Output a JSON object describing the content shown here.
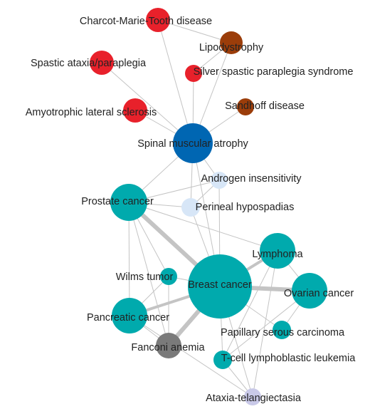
{
  "palette": {
    "red": "#e8212b",
    "brown": "#9b3d0a",
    "blue": "#0066b2",
    "teal": "#00aaad",
    "lightblue": "#d7e6f7",
    "gray": "#7a7a7a",
    "lavender": "#c9c9e8",
    "edge": "#c4c4c4"
  },
  "nodes": [
    {
      "id": "cmt",
      "label": "Charcot-Marie-Tooth disease",
      "color": "red"
    },
    {
      "id": "lipo",
      "label": "Lipodystrophy",
      "color": "brown"
    },
    {
      "id": "spastic",
      "label": "Spastic ataxia/paraplegia",
      "color": "red"
    },
    {
      "id": "silver",
      "label": "Silver spastic paraplegia syndrome",
      "color": "red"
    },
    {
      "id": "sandhoff",
      "label": "Sandhoff disease",
      "color": "brown"
    },
    {
      "id": "als",
      "label": "Amyotrophic lateral sclerosis",
      "color": "red"
    },
    {
      "id": "sma",
      "label": "Spinal muscular atrophy",
      "color": "blue"
    },
    {
      "id": "androgen",
      "label": "Androgen insensitivity",
      "color": "lightblue"
    },
    {
      "id": "prostate",
      "label": "Prostate cancer",
      "color": "teal"
    },
    {
      "id": "perineal",
      "label": "Perineal hypospadias",
      "color": "lightblue"
    },
    {
      "id": "lymphoma",
      "label": "Lymphoma",
      "color": "teal"
    },
    {
      "id": "wilms",
      "label": "Wilms tumor",
      "color": "teal"
    },
    {
      "id": "breast",
      "label": "Breast cancer",
      "color": "teal"
    },
    {
      "id": "ovarian",
      "label": "Ovarian cancer",
      "color": "teal"
    },
    {
      "id": "pancreatic",
      "label": "Pancreatic cancer",
      "color": "teal"
    },
    {
      "id": "papillary",
      "label": "Papillary serous carcinoma",
      "color": "teal"
    },
    {
      "id": "fanconi",
      "label": "Fanconi anemia",
      "color": "gray"
    },
    {
      "id": "tcell",
      "label": "T-cell lymphoblastic leukemia",
      "color": "teal"
    },
    {
      "id": "ataxia",
      "label": "Ataxia-telangiectasia",
      "color": "lavender"
    }
  ],
  "edges": [
    {
      "source": "cmt",
      "target": "lipo",
      "weight": 1
    },
    {
      "source": "cmt",
      "target": "sma",
      "weight": 1
    },
    {
      "source": "spastic",
      "target": "sma",
      "weight": 1
    },
    {
      "source": "silver",
      "target": "lipo",
      "weight": 1
    },
    {
      "source": "silver",
      "target": "sma",
      "weight": 1
    },
    {
      "source": "lipo",
      "target": "sma",
      "weight": 1
    },
    {
      "source": "sandhoff",
      "target": "sma",
      "weight": 1
    },
    {
      "source": "als",
      "target": "sma",
      "weight": 1
    },
    {
      "source": "sma",
      "target": "androgen",
      "weight": 1
    },
    {
      "source": "sma",
      "target": "prostate",
      "weight": 1
    },
    {
      "source": "sma",
      "target": "perineal",
      "weight": 1
    },
    {
      "source": "sma",
      "target": "breast",
      "weight": 1
    },
    {
      "source": "androgen",
      "target": "prostate",
      "weight": 1
    },
    {
      "source": "androgen",
      "target": "perineal",
      "weight": 1
    },
    {
      "source": "androgen",
      "target": "breast",
      "weight": 1
    },
    {
      "source": "perineal",
      "target": "prostate",
      "weight": 1
    },
    {
      "source": "perineal",
      "target": "breast",
      "weight": 1
    },
    {
      "source": "prostate",
      "target": "breast",
      "weight": 3
    },
    {
      "source": "prostate",
      "target": "pancreatic",
      "weight": 1
    },
    {
      "source": "prostate",
      "target": "wilms",
      "weight": 1
    },
    {
      "source": "prostate",
      "target": "lymphoma",
      "weight": 1
    },
    {
      "source": "prostate",
      "target": "fanconi",
      "weight": 1
    },
    {
      "source": "breast",
      "target": "lymphoma",
      "weight": 2
    },
    {
      "source": "breast",
      "target": "ovarian",
      "weight": 3
    },
    {
      "source": "breast",
      "target": "pancreatic",
      "weight": 2
    },
    {
      "source": "breast",
      "target": "fanconi",
      "weight": 3
    },
    {
      "source": "breast",
      "target": "wilms",
      "weight": 1
    },
    {
      "source": "breast",
      "target": "papillary",
      "weight": 1
    },
    {
      "source": "breast",
      "target": "tcell",
      "weight": 1
    },
    {
      "source": "breast",
      "target": "ataxia",
      "weight": 1
    },
    {
      "source": "lymphoma",
      "target": "ovarian",
      "weight": 1
    },
    {
      "source": "lymphoma",
      "target": "tcell",
      "weight": 1
    },
    {
      "source": "lymphoma",
      "target": "ataxia",
      "weight": 1
    },
    {
      "source": "ovarian",
      "target": "papillary",
      "weight": 1
    },
    {
      "source": "ovarian",
      "target": "tcell",
      "weight": 1
    },
    {
      "source": "pancreatic",
      "target": "fanconi",
      "weight": 1
    },
    {
      "source": "pancreatic",
      "target": "wilms",
      "weight": 1
    },
    {
      "source": "pancreatic",
      "target": "ataxia",
      "weight": 1
    },
    {
      "source": "wilms",
      "target": "fanconi",
      "weight": 1
    },
    {
      "source": "tcell",
      "target": "ataxia",
      "weight": 1
    }
  ]
}
